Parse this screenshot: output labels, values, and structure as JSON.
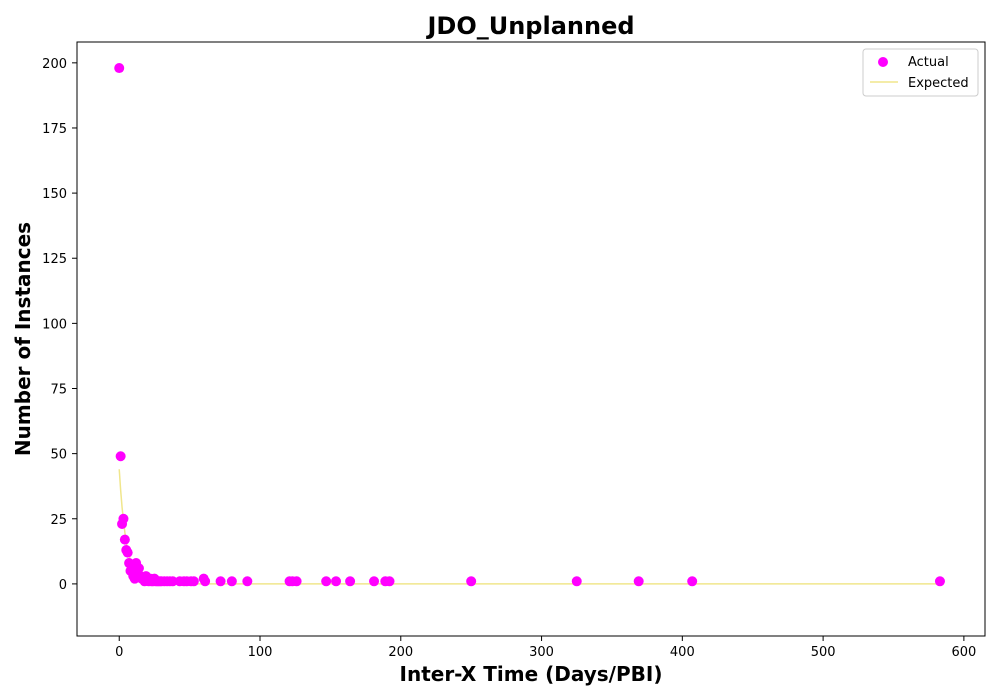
{
  "chart_data": {
    "type": "scatter",
    "title": "JDO_Unplanned",
    "xlabel": "Inter-X Time (Days/PBI)",
    "ylabel": "Number of Instances",
    "xlim": [
      -30,
      615
    ],
    "ylim": [
      -20,
      208
    ],
    "xticks": [
      0,
      100,
      200,
      300,
      400,
      500,
      600
    ],
    "yticks": [
      0,
      25,
      50,
      75,
      100,
      125,
      150,
      175,
      200
    ],
    "grid": false,
    "legend_position": "top-right",
    "colors": {
      "actual": "#ff00ff",
      "expected": "#f0e68c"
    },
    "series": [
      {
        "name": "Actual",
        "kind": "scatter",
        "points": [
          [
            0,
            198
          ],
          [
            1,
            49
          ],
          [
            2,
            23
          ],
          [
            3,
            25
          ],
          [
            4,
            17
          ],
          [
            5,
            13
          ],
          [
            6,
            12
          ],
          [
            7,
            8
          ],
          [
            8,
            5
          ],
          [
            9,
            7
          ],
          [
            10,
            3
          ],
          [
            11,
            2
          ],
          [
            12,
            8
          ],
          [
            13,
            5
          ],
          [
            14,
            6
          ],
          [
            15,
            3
          ],
          [
            16,
            2
          ],
          [
            17,
            2
          ],
          [
            18,
            1
          ],
          [
            19,
            3
          ],
          [
            20,
            2
          ],
          [
            21,
            1
          ],
          [
            22,
            2
          ],
          [
            23,
            1
          ],
          [
            24,
            1
          ],
          [
            25,
            2
          ],
          [
            26,
            1
          ],
          [
            27,
            1
          ],
          [
            28,
            1
          ],
          [
            29,
            1
          ],
          [
            30,
            1
          ],
          [
            32,
            1
          ],
          [
            34,
            1
          ],
          [
            36,
            1
          ],
          [
            38,
            1
          ],
          [
            43,
            1
          ],
          [
            46,
            1
          ],
          [
            48,
            1
          ],
          [
            51,
            1
          ],
          [
            53,
            1
          ],
          [
            60,
            2
          ],
          [
            61,
            1
          ],
          [
            72,
            1
          ],
          [
            80,
            1
          ],
          [
            91,
            1
          ],
          [
            121,
            1
          ],
          [
            123,
            1
          ],
          [
            126,
            1
          ],
          [
            147,
            1
          ],
          [
            154,
            1
          ],
          [
            164,
            1
          ],
          [
            181,
            1
          ],
          [
            189,
            1
          ],
          [
            192,
            1
          ],
          [
            250,
            1
          ],
          [
            325,
            1
          ],
          [
            369,
            1
          ],
          [
            407,
            1
          ],
          [
            583,
            1
          ]
        ]
      },
      {
        "name": "Expected",
        "kind": "line",
        "model": "exponential",
        "amplitude": 44,
        "rate": 0.2,
        "x_range": [
          0,
          583
        ]
      }
    ]
  }
}
